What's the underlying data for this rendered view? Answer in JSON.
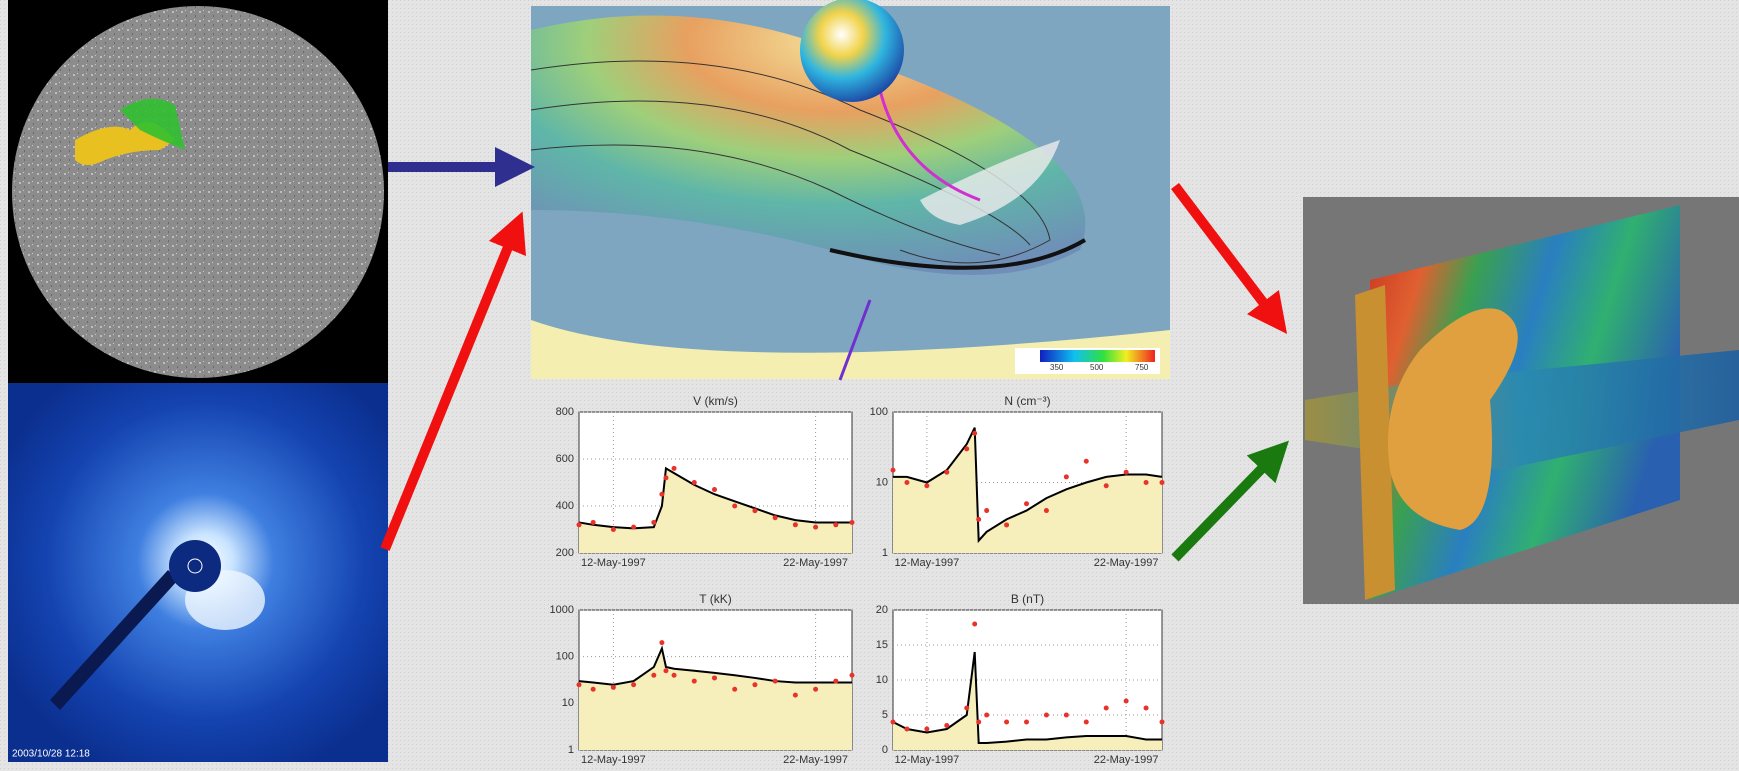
{
  "chart_data": [
    {
      "type": "line",
      "title": "V (km/s)",
      "log": false,
      "x": [
        10.3,
        11,
        12,
        13,
        14,
        14.4,
        14.6,
        15,
        16,
        17,
        18,
        19,
        20,
        21,
        22,
        23,
        23.8
      ],
      "xlim": [
        10.3,
        23.8
      ],
      "xticks": [
        {
          "value": 12,
          "label": "12-May-1997"
        },
        {
          "value": 22,
          "label": "22-May-1997"
        }
      ],
      "ylim": [
        200,
        800
      ],
      "yticks": [
        200,
        400,
        600,
        800
      ],
      "series": [
        {
          "color": "#000000",
          "values": [
            330,
            320,
            310,
            305,
            310,
            400,
            560,
            540,
            490,
            450,
            420,
            390,
            360,
            340,
            330,
            330,
            330
          ]
        },
        {
          "color": "#e8332a",
          "values": [
            320,
            330,
            300,
            310,
            330,
            450,
            520,
            560,
            500,
            470,
            400,
            380,
            350,
            320,
            310,
            320,
            330
          ]
        }
      ]
    },
    {
      "type": "line",
      "title": "N (cm⁻³)",
      "log": true,
      "x": [
        10.3,
        11,
        12,
        13,
        14,
        14.4,
        14.6,
        15,
        16,
        17,
        18,
        19,
        20,
        21,
        22,
        23,
        23.8
      ],
      "xlim": [
        10.3,
        23.8
      ],
      "xticks": [
        {
          "value": 12,
          "label": "12-May-1997"
        },
        {
          "value": 22,
          "label": "22-May-1997"
        }
      ],
      "ylim": [
        1,
        100
      ],
      "yticks": [
        1,
        10,
        100
      ],
      "series": [
        {
          "color": "#000000",
          "values": [
            12,
            12,
            10,
            15,
            35,
            60,
            1.5,
            2,
            3,
            4,
            6,
            8,
            10,
            12,
            13,
            13,
            12
          ]
        },
        {
          "color": "#e8332a",
          "values": [
            15,
            10,
            9,
            14,
            30,
            50,
            3,
            4,
            2.5,
            5,
            4,
            12,
            20,
            9,
            14,
            10,
            10
          ]
        }
      ]
    },
    {
      "type": "line",
      "title": "T (kK)",
      "log": true,
      "x": [
        10.3,
        11,
        12,
        13,
        14,
        14.4,
        14.6,
        15,
        16,
        17,
        18,
        19,
        20,
        21,
        22,
        23,
        23.8
      ],
      "xlim": [
        10.3,
        23.8
      ],
      "xticks": [
        {
          "value": 12,
          "label": "12-May-1997"
        },
        {
          "value": 22,
          "label": "22-May-1997"
        }
      ],
      "ylim": [
        1,
        1000
      ],
      "yticks": [
        1,
        10,
        100,
        1000
      ],
      "series": [
        {
          "color": "#000000",
          "values": [
            30,
            28,
            25,
            30,
            60,
            150,
            60,
            55,
            50,
            45,
            40,
            35,
            30,
            28,
            28,
            28,
            28
          ]
        },
        {
          "color": "#e8332a",
          "values": [
            25,
            20,
            22,
            25,
            40,
            200,
            50,
            40,
            30,
            35,
            20,
            25,
            30,
            15,
            20,
            30,
            40
          ]
        }
      ]
    },
    {
      "type": "line",
      "title": "B (nT)",
      "log": false,
      "x": [
        10.3,
        11,
        12,
        13,
        14,
        14.4,
        14.6,
        15,
        16,
        17,
        18,
        19,
        20,
        21,
        22,
        23,
        23.8
      ],
      "xlim": [
        10.3,
        23.8
      ],
      "xticks": [
        {
          "value": 12,
          "label": "12-May-1997"
        },
        {
          "value": 22,
          "label": "22-May-1997"
        }
      ],
      "ylim": [
        0,
        20
      ],
      "yticks": [
        0,
        5,
        10,
        15,
        20
      ],
      "series": [
        {
          "color": "#000000",
          "values": [
            4,
            3,
            2.5,
            3,
            5,
            14,
            1,
            1,
            1.2,
            1.5,
            1.5,
            1.8,
            2,
            2,
            2,
            1.5,
            1.5
          ]
        },
        {
          "color": "#e8332a",
          "values": [
            4,
            3,
            3,
            3.5,
            6,
            18,
            4,
            5,
            4,
            4,
            5,
            5,
            4,
            6,
            7,
            6,
            4
          ]
        }
      ]
    }
  ],
  "panels": {
    "coronagraph_timestamp": "2003/10/28 12:18",
    "colorbar_ticks": [
      "350",
      "500",
      "750"
    ]
  }
}
